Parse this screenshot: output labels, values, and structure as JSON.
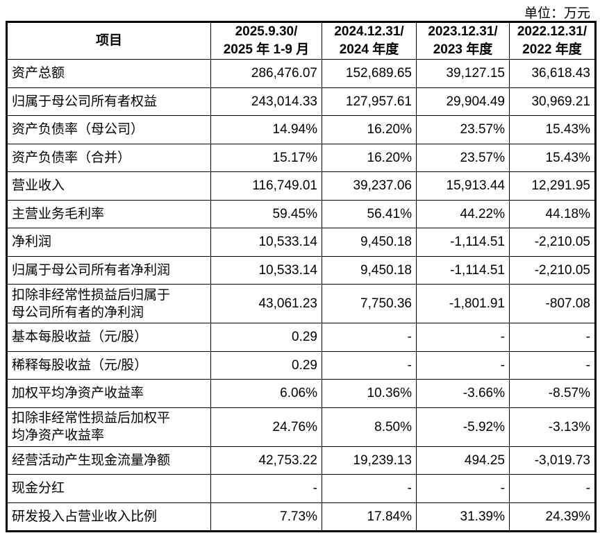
{
  "unit": "单位：万元",
  "headers": [
    "项目",
    "2025.9.30/\n2025 年 1-9 月",
    "2024.12.31/\n2024 年度",
    "2023.12.31/\n2023 年度",
    "2022.12.31/\n2022 年度"
  ],
  "header_lines": [
    [
      "项目"
    ],
    [
      "2025.9.30/",
      "2025 年 1-9 月"
    ],
    [
      "2024.12.31/",
      "2024 年度"
    ],
    [
      "2023.12.31/",
      "2023 年度"
    ],
    [
      "2022.12.31/",
      "2022 年度"
    ]
  ],
  "rows": [
    {
      "label": [
        "资产总额"
      ],
      "values": [
        "286,476.07",
        "152,689.65",
        "39,127.15",
        "36,618.43"
      ]
    },
    {
      "label": [
        "归属于母公司所有者权益"
      ],
      "values": [
        "243,014.33",
        "127,957.61",
        "29,904.49",
        "30,969.21"
      ]
    },
    {
      "label": [
        "资产负债率（母公司）"
      ],
      "values": [
        "14.94%",
        "16.20%",
        "23.57%",
        "15.43%"
      ]
    },
    {
      "label": [
        "资产负债率（合并）"
      ],
      "values": [
        "15.17%",
        "16.20%",
        "23.57%",
        "15.43%"
      ]
    },
    {
      "label": [
        "营业收入"
      ],
      "values": [
        "116,749.01",
        "39,237.06",
        "15,913.44",
        "12,291.95"
      ]
    },
    {
      "label": [
        "主营业务毛利率"
      ],
      "values": [
        "59.45%",
        "56.41%",
        "44.22%",
        "44.18%"
      ]
    },
    {
      "label": [
        "净利润"
      ],
      "values": [
        "10,533.14",
        "9,450.18",
        "-1,114.51",
        "-2,210.05"
      ]
    },
    {
      "label": [
        "归属于母公司所有者净利润"
      ],
      "values": [
        "10,533.14",
        "9,450.18",
        "-1,114.51",
        "-2,210.05"
      ]
    },
    {
      "label": [
        "扣除非经常性损益后归属于",
        "母公司所有者的净利润"
      ],
      "values": [
        "43,061.23",
        "7,750.36",
        "-1,801.91",
        "-807.08"
      ]
    },
    {
      "label": [
        "基本每股收益（元/股）"
      ],
      "values": [
        "0.29",
        "-",
        "-",
        "-"
      ]
    },
    {
      "label": [
        "稀释每股收益（元/股）"
      ],
      "values": [
        "0.29",
        "-",
        "-",
        "-"
      ]
    },
    {
      "label": [
        "加权平均净资产收益率"
      ],
      "values": [
        "6.06%",
        "10.36%",
        "-3.66%",
        "-8.57%"
      ]
    },
    {
      "label": [
        "扣除非经常性损益后加权平",
        "均净资产收益率"
      ],
      "values": [
        "24.76%",
        "8.50%",
        "-5.92%",
        "-3.13%"
      ]
    },
    {
      "label": [
        "经营活动产生现金流量净额"
      ],
      "values": [
        "42,753.22",
        "19,239.13",
        "494.25",
        "-3,019.73"
      ]
    },
    {
      "label": [
        "现金分红"
      ],
      "values": [
        "-",
        "-",
        "-",
        "-"
      ]
    },
    {
      "label": [
        "研发投入占营业收入比例"
      ],
      "values": [
        "7.73%",
        "17.84%",
        "31.39%",
        "24.39%"
      ]
    }
  ]
}
